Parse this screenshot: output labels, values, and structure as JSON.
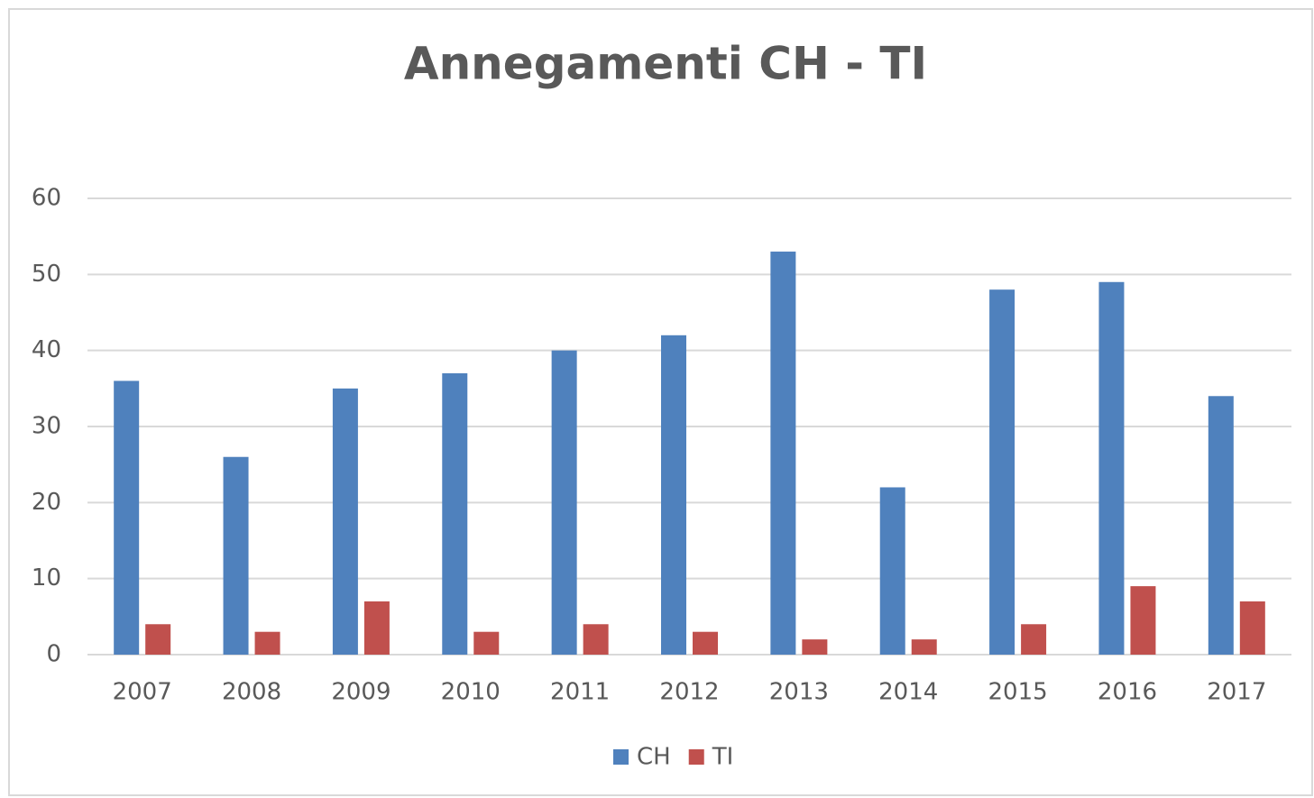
{
  "chart_data": {
    "type": "bar",
    "title": "Annegamenti CH - TI",
    "categories": [
      "2007",
      "2008",
      "2009",
      "2010",
      "2011",
      "2012",
      "2013",
      "2014",
      "2015",
      "2016",
      "2017"
    ],
    "series": [
      {
        "name": "CH",
        "color": "#4f81bd",
        "values": [
          36,
          26,
          35,
          37,
          40,
          42,
          53,
          22,
          48,
          49,
          34
        ]
      },
      {
        "name": "TI",
        "color": "#c0504d",
        "values": [
          4,
          3,
          7,
          3,
          4,
          3,
          2,
          2,
          4,
          9,
          7
        ]
      }
    ],
    "ylim": [
      0,
      60
    ],
    "yticks": [
      0,
      10,
      20,
      30,
      40,
      50,
      60
    ],
    "grid": true,
    "legend": "bottom"
  }
}
